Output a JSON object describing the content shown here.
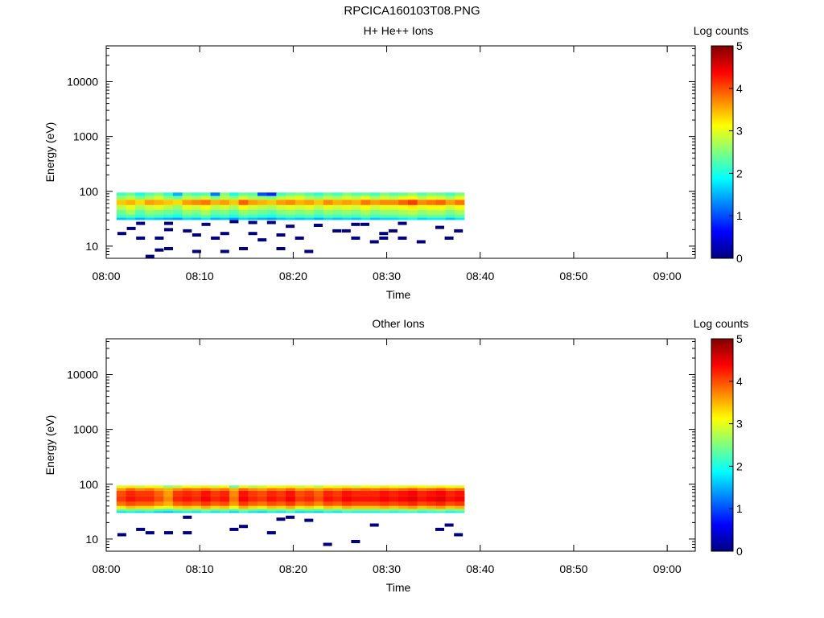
{
  "figure": {
    "title": "RPCICA160103T08.PNG"
  },
  "colorbar_colors": [
    "#00007f",
    "#0000ff",
    "#007fff",
    "#00ffff",
    "#7fff7f",
    "#ffff00",
    "#ff7f00",
    "#ff0000",
    "#7f0000"
  ],
  "chart_data": [
    {
      "type": "heatmap",
      "title": "H+ He++ Ions",
      "xlabel": "Time",
      "ylabel": "Energy (eV)",
      "x_ticks": [
        "08:00",
        "08:10",
        "08:20",
        "08:30",
        "08:40",
        "08:50",
        "09:00"
      ],
      "xlim": [
        "08:00",
        "09:03"
      ],
      "y_scale": "log",
      "y_ticks": [
        "10",
        "100",
        "1000",
        "10000"
      ],
      "ylim": [
        6,
        45000
      ],
      "colorbar": {
        "label": "Log counts",
        "ticks": [
          "0",
          "1",
          "2",
          "3",
          "4",
          "5"
        ],
        "range": [
          0,
          5
        ]
      },
      "data_coverage": {
        "time_range": [
          "08:01",
          "08:38"
        ],
        "energy_range": [
          6,
          95
        ]
      },
      "rows": [
        {
          "energy_range": [
            82,
            95
          ],
          "value_pattern": [
            2.2,
            2.4,
            2.0,
            2.3,
            2.5,
            2.1,
            1.5,
            2.4,
            2.2,
            2.3,
            1.2,
            2.5,
            2.0,
            2.4,
            2.3,
            1.0,
            0.8,
            2.2,
            2.4,
            2.5,
            2.3,
            2.1,
            2.4,
            2.2,
            2.5,
            2.3,
            2.4,
            2.2,
            2.5,
            2.3,
            2.4,
            2.6,
            2.3,
            2.5,
            2.4,
            2.2,
            2.5
          ]
        },
        {
          "energy_range": [
            70,
            82
          ],
          "value_pattern": [
            2.6,
            2.8,
            2.5,
            2.7,
            2.9,
            2.6,
            2.4,
            2.8,
            2.7,
            2.9,
            2.5,
            2.8,
            2.6,
            2.9,
            2.7,
            2.6,
            2.5,
            2.8,
            2.9,
            3.0,
            2.7,
            2.6,
            2.8,
            2.7,
            2.9,
            2.8,
            3.0,
            2.7,
            2.9,
            2.8,
            3.0,
            3.1,
            2.8,
            3.0,
            2.9,
            2.7,
            3.0
          ]
        },
        {
          "energy_range": [
            56,
            70
          ],
          "value_pattern": [
            3.4,
            3.5,
            3.3,
            3.6,
            3.5,
            3.4,
            3.3,
            3.6,
            3.7,
            3.8,
            3.5,
            3.6,
            3.4,
            3.9,
            3.6,
            3.5,
            3.4,
            3.6,
            3.7,
            3.5,
            3.6,
            3.4,
            3.7,
            3.5,
            3.6,
            3.5,
            3.8,
            3.6,
            3.7,
            3.7,
            3.9,
            4.1,
            3.7,
            3.8,
            3.9,
            3.6,
            3.8
          ]
        },
        {
          "energy_range": [
            46,
            56
          ],
          "value_pattern": [
            2.8,
            3.0,
            2.7,
            2.9,
            3.0,
            2.8,
            2.6,
            3.0,
            2.9,
            3.1,
            2.8,
            2.9,
            2.7,
            3.1,
            2.9,
            2.8,
            2.7,
            2.9,
            3.0,
            2.9,
            3.0,
            2.8,
            3.0,
            2.9,
            3.0,
            2.9,
            3.1,
            2.9,
            3.0,
            3.0,
            3.1,
            3.2,
            3.0,
            3.1,
            3.1,
            2.9,
            3.1
          ]
        },
        {
          "energy_range": [
            38,
            46
          ],
          "value_pattern": [
            2.4,
            2.7,
            2.3,
            2.6,
            2.5,
            2.4,
            2.3,
            2.6,
            2.5,
            2.7,
            2.4,
            2.5,
            2.3,
            2.6,
            2.5,
            2.4,
            2.3,
            2.5,
            2.6,
            2.5,
            2.6,
            2.4,
            2.6,
            2.5,
            2.6,
            2.5,
            2.7,
            2.5,
            2.6,
            2.6,
            2.7,
            2.8,
            2.6,
            2.7,
            2.7,
            2.5,
            2.7
          ]
        },
        {
          "energy_range": [
            33,
            38
          ],
          "value_pattern": [
            2.2,
            2.3,
            2.1,
            2.3,
            2.2,
            2.1,
            2.0,
            2.3,
            2.2,
            2.4,
            2.1,
            2.2,
            2.0,
            2.3,
            2.2,
            2.1,
            2.0,
            2.2,
            2.3,
            2.2,
            2.3,
            2.1,
            2.3,
            2.2,
            2.3,
            2.2,
            2.4,
            2.2,
            2.3,
            2.3,
            2.4,
            2.5,
            2.3,
            2.4,
            2.4,
            2.2,
            2.4
          ]
        },
        {
          "energy_range": [
            30,
            33
          ],
          "value_pattern": [
            1.6,
            1.7,
            1.5,
            1.7,
            1.6,
            1.5,
            1.4,
            1.7,
            1.6,
            1.8,
            1.5,
            1.6,
            1.4,
            1.7,
            1.6,
            1.5,
            1.4,
            1.6,
            1.7,
            1.6,
            1.7,
            1.5,
            1.7,
            1.6,
            1.7,
            1.6,
            1.8,
            1.6,
            1.7,
            1.7,
            1.8,
            1.9,
            1.7,
            1.8,
            1.8,
            1.6,
            1.8
          ]
        }
      ],
      "sparse_bins": [
        {
          "t": "08:01",
          "e": 17
        },
        {
          "t": "08:02",
          "e": 21
        },
        {
          "t": "08:03",
          "e": 26
        },
        {
          "t": "08:03",
          "e": 14
        },
        {
          "t": "08:04",
          "e": 6.5
        },
        {
          "t": "08:05",
          "e": 8.5
        },
        {
          "t": "08:05",
          "e": 14
        },
        {
          "t": "08:06",
          "e": 20
        },
        {
          "t": "08:06",
          "e": 26
        },
        {
          "t": "08:06",
          "e": 9
        },
        {
          "t": "08:08",
          "e": 19
        },
        {
          "t": "08:09",
          "e": 16
        },
        {
          "t": "08:09",
          "e": 8
        },
        {
          "t": "08:10",
          "e": 25
        },
        {
          "t": "08:11",
          "e": 14
        },
        {
          "t": "08:12",
          "e": 8
        },
        {
          "t": "08:12",
          "e": 17
        },
        {
          "t": "08:13",
          "e": 28
        },
        {
          "t": "08:14",
          "e": 9
        },
        {
          "t": "08:15",
          "e": 27
        },
        {
          "t": "08:15",
          "e": 17
        },
        {
          "t": "08:16",
          "e": 13
        },
        {
          "t": "08:17",
          "e": 27
        },
        {
          "t": "08:18",
          "e": 16
        },
        {
          "t": "08:18",
          "e": 9
        },
        {
          "t": "08:19",
          "e": 23
        },
        {
          "t": "08:20",
          "e": 14
        },
        {
          "t": "08:21",
          "e": 8
        },
        {
          "t": "08:22",
          "e": 24
        },
        {
          "t": "08:24",
          "e": 19
        },
        {
          "t": "08:25",
          "e": 19
        },
        {
          "t": "08:26",
          "e": 14
        },
        {
          "t": "08:26",
          "e": 25
        },
        {
          "t": "08:27",
          "e": 25
        },
        {
          "t": "08:28",
          "e": 12
        },
        {
          "t": "08:29",
          "e": 17
        },
        {
          "t": "08:29",
          "e": 14
        },
        {
          "t": "08:30",
          "e": 19
        },
        {
          "t": "08:31",
          "e": 14
        },
        {
          "t": "08:31",
          "e": 26
        },
        {
          "t": "08:33",
          "e": 12
        },
        {
          "t": "08:35",
          "e": 22
        },
        {
          "t": "08:36",
          "e": 14
        },
        {
          "t": "08:37",
          "e": 19
        }
      ]
    },
    {
      "type": "heatmap",
      "title": "Other Ions",
      "xlabel": "Time",
      "ylabel": "Energy (eV)",
      "x_ticks": [
        "08:00",
        "08:10",
        "08:20",
        "08:30",
        "08:40",
        "08:50",
        "09:00"
      ],
      "xlim": [
        "08:00",
        "09:03"
      ],
      "y_scale": "log",
      "y_ticks": [
        "10",
        "100",
        "1000",
        "10000"
      ],
      "ylim": [
        6,
        45000
      ],
      "colorbar": {
        "label": "Log counts",
        "ticks": [
          "0",
          "1",
          "2",
          "3",
          "4",
          "5"
        ],
        "range": [
          0,
          5
        ]
      },
      "data_coverage": {
        "time_range": [
          "08:01",
          "08:38"
        ],
        "energy_range": [
          8,
          95
        ]
      },
      "rows": [
        {
          "energy_range": [
            85,
            95
          ],
          "value_pattern": [
            3.0,
            3.2,
            2.9,
            3.1,
            3.0,
            2.6,
            2.8,
            3.1,
            3.0,
            3.2,
            2.9,
            3.1,
            2.4,
            3.0,
            2.8,
            2.9,
            3.1,
            3.0,
            3.2,
            2.9,
            3.0,
            2.8,
            3.1,
            3.0,
            3.2,
            2.9,
            3.1,
            3.0,
            3.2,
            3.1,
            3.0,
            3.2,
            3.1,
            3.0,
            3.2,
            3.1,
            3.0
          ]
        },
        {
          "energy_range": [
            76,
            85
          ],
          "value_pattern": [
            3.6,
            3.9,
            3.7,
            3.8,
            3.6,
            3.5,
            3.7,
            3.9,
            3.8,
            3.9,
            3.7,
            3.8,
            3.5,
            3.9,
            3.7,
            3.6,
            3.8,
            3.7,
            3.9,
            3.6,
            3.7,
            3.6,
            3.8,
            3.7,
            3.9,
            3.8,
            3.9,
            3.8,
            3.9,
            3.8,
            3.9,
            4.0,
            3.8,
            3.9,
            4.0,
            3.8,
            3.9
          ]
        },
        {
          "energy_range": [
            60,
            76
          ],
          "value_pattern": [
            4.0,
            4.2,
            4.1,
            4.1,
            3.9,
            3.6,
            4.1,
            4.2,
            4.1,
            4.3,
            4.1,
            4.2,
            3.7,
            4.3,
            4.1,
            4.0,
            4.2,
            4.1,
            4.3,
            4.0,
            4.1,
            3.9,
            4.2,
            4.1,
            4.3,
            4.2,
            4.2,
            4.2,
            4.3,
            4.2,
            4.3,
            4.4,
            4.2,
            4.3,
            4.4,
            4.2,
            4.3
          ]
        },
        {
          "energy_range": [
            48,
            60
          ],
          "value_pattern": [
            4.1,
            4.3,
            4.2,
            4.2,
            4.0,
            3.7,
            4.2,
            4.3,
            4.2,
            4.4,
            4.2,
            4.3,
            3.8,
            4.4,
            4.2,
            4.1,
            4.3,
            4.2,
            4.4,
            4.1,
            4.2,
            4.0,
            4.3,
            4.2,
            4.4,
            4.3,
            4.3,
            4.3,
            4.4,
            4.3,
            4.4,
            4.5,
            4.3,
            4.4,
            4.5,
            4.3,
            4.4
          ]
        },
        {
          "energy_range": [
            40,
            48
          ],
          "value_pattern": [
            3.8,
            4.0,
            3.9,
            3.9,
            3.7,
            3.5,
            3.9,
            4.0,
            3.9,
            4.1,
            3.9,
            4.0,
            3.6,
            4.1,
            3.9,
            3.8,
            4.0,
            3.9,
            4.1,
            3.8,
            3.9,
            3.7,
            4.0,
            3.9,
            4.1,
            4.0,
            4.0,
            4.0,
            4.1,
            4.0,
            4.1,
            4.2,
            4.0,
            4.1,
            4.2,
            4.0,
            4.1
          ]
        },
        {
          "energy_range": [
            35,
            40
          ],
          "value_pattern": [
            3.2,
            3.4,
            3.3,
            3.3,
            3.1,
            3.0,
            3.3,
            3.4,
            3.3,
            3.5,
            3.3,
            3.4,
            3.1,
            3.5,
            3.3,
            3.2,
            3.4,
            3.3,
            3.5,
            3.2,
            3.3,
            3.1,
            3.4,
            3.3,
            3.5,
            3.4,
            3.4,
            3.4,
            3.5,
            3.4,
            3.5,
            3.6,
            3.4,
            3.5,
            3.6,
            3.4,
            3.5
          ]
        },
        {
          "energy_range": [
            32,
            35
          ],
          "value_pattern": [
            2.3,
            2.4,
            2.3,
            2.4,
            2.2,
            2.1,
            2.3,
            2.4,
            2.3,
            2.5,
            2.3,
            2.4,
            2.2,
            2.5,
            2.3,
            2.2,
            2.4,
            2.3,
            2.5,
            2.2,
            2.3,
            2.2,
            2.4,
            2.3,
            2.5,
            2.4,
            2.4,
            2.4,
            2.5,
            2.4,
            2.5,
            2.6,
            2.4,
            2.5,
            2.6,
            2.4,
            2.5
          ]
        },
        {
          "energy_range": [
            30,
            32
          ],
          "value_pattern": [
            1.7,
            1.8,
            1.7,
            1.8,
            1.6,
            1.5,
            1.7,
            1.8,
            1.7,
            1.9,
            1.7,
            1.8,
            1.6,
            1.9,
            1.7,
            1.6,
            1.8,
            1.7,
            1.9,
            1.6,
            1.7,
            1.6,
            1.8,
            1.7,
            1.9,
            1.8,
            1.8,
            1.8,
            1.9,
            1.8,
            1.9,
            2.0,
            1.8,
            1.9,
            2.0,
            1.8,
            1.9
          ]
        }
      ],
      "sparse_bins": [
        {
          "t": "08:01",
          "e": 12
        },
        {
          "t": "08:03",
          "e": 15
        },
        {
          "t": "08:04",
          "e": 13
        },
        {
          "t": "08:06",
          "e": 13
        },
        {
          "t": "08:08",
          "e": 13
        },
        {
          "t": "08:08",
          "e": 25
        },
        {
          "t": "08:13",
          "e": 15
        },
        {
          "t": "08:14",
          "e": 17
        },
        {
          "t": "08:17",
          "e": 13
        },
        {
          "t": "08:18",
          "e": 23
        },
        {
          "t": "08:19",
          "e": 25
        },
        {
          "t": "08:21",
          "e": 22
        },
        {
          "t": "08:23",
          "e": 8
        },
        {
          "t": "08:26",
          "e": 9
        },
        {
          "t": "08:28",
          "e": 18
        },
        {
          "t": "08:35",
          "e": 15
        },
        {
          "t": "08:36",
          "e": 18
        },
        {
          "t": "08:37",
          "e": 12
        }
      ]
    }
  ]
}
